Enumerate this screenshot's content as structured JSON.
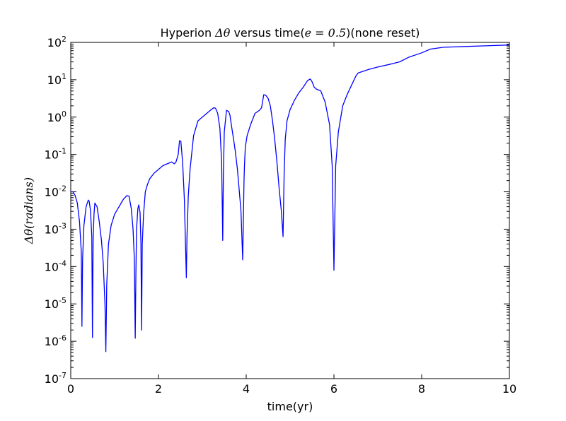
{
  "chart_data": {
    "type": "line",
    "title_parts": [
      "Hyperion ",
      "Δθ",
      " versus time(",
      "e = 0.5",
      ")(none reset)"
    ],
    "xlabel": "time(yr)",
    "ylabel": "Δθ(radians)",
    "ylabel_parts": [
      "Δθ(",
      "radians",
      ")"
    ],
    "xlim": [
      0,
      10
    ],
    "ylim_log10": [
      -7,
      2
    ],
    "y_scale": "log",
    "grid": false,
    "x_ticks": [
      0,
      2,
      4,
      6,
      8,
      10
    ],
    "x_tick_labels": [
      "0",
      "2",
      "4",
      "6",
      "8",
      "10"
    ],
    "y_ticks_log10": [
      -7,
      -6,
      -5,
      -4,
      -3,
      -2,
      -1,
      0,
      1,
      2
    ],
    "y_tick_base": "10",
    "y_tick_exponents": [
      "-7",
      "-6",
      "-5",
      "-4",
      "-3",
      "-2",
      "-1",
      "0",
      "1",
      "2"
    ],
    "line_color": "#0000ff",
    "series": [
      {
        "x": [
          0.0,
          0.05,
          0.1,
          0.15,
          0.2,
          0.24,
          0.255,
          0.27,
          0.3,
          0.35,
          0.4,
          0.42,
          0.45,
          0.48,
          0.495,
          0.51,
          0.53,
          0.55,
          0.6,
          0.65,
          0.7,
          0.74,
          0.78,
          0.8,
          0.82,
          0.86,
          0.92,
          1.0,
          1.1,
          1.2,
          1.28,
          1.33,
          1.38,
          1.42,
          1.45,
          1.47,
          1.485,
          1.5,
          1.53,
          1.55,
          1.58,
          1.6,
          1.615,
          1.63,
          1.66,
          1.7,
          1.75,
          1.8,
          1.9,
          2.0,
          2.1,
          2.2,
          2.3,
          2.36,
          2.4,
          2.45,
          2.48,
          2.51,
          2.55,
          2.59,
          2.62,
          2.635,
          2.65,
          2.68,
          2.72,
          2.8,
          2.9,
          3.0,
          3.1,
          3.2,
          3.26,
          3.3,
          3.35,
          3.4,
          3.44,
          3.465,
          3.48,
          3.5,
          3.55,
          3.6,
          3.63,
          3.66,
          3.7,
          3.75,
          3.8,
          3.88,
          3.92,
          3.95,
          3.96,
          3.98,
          4.02,
          4.1,
          4.2,
          4.3,
          4.35,
          4.4,
          4.45,
          4.5,
          4.55,
          4.6,
          4.65,
          4.7,
          4.75,
          4.8,
          4.84,
          4.865,
          4.89,
          4.93,
          5.0,
          5.1,
          5.2,
          5.3,
          5.4,
          5.46,
          5.5,
          5.55,
          5.6,
          5.7,
          5.8,
          5.9,
          5.96,
          6.0,
          6.04,
          6.1,
          6.2,
          6.3,
          6.4,
          6.5,
          6.55,
          6.8,
          7.0,
          7.3,
          7.5,
          7.7,
          8.0,
          8.2,
          8.5,
          9.0,
          9.5,
          10.0
        ],
        "y_log10": [
          -2.0,
          -2.0,
          -2.1,
          -2.3,
          -2.8,
          -3.6,
          -5.6,
          -3.8,
          -2.9,
          -2.4,
          -2.22,
          -2.25,
          -2.5,
          -3.2,
          -5.9,
          -3.3,
          -2.6,
          -2.3,
          -2.4,
          -2.8,
          -3.3,
          -3.9,
          -5.0,
          -6.28,
          -4.5,
          -3.4,
          -2.9,
          -2.6,
          -2.4,
          -2.2,
          -2.1,
          -2.12,
          -2.45,
          -3.0,
          -3.8,
          -5.92,
          -4.2,
          -3.0,
          -2.45,
          -2.35,
          -2.55,
          -3.4,
          -5.7,
          -3.4,
          -2.6,
          -2.0,
          -1.8,
          -1.65,
          -1.5,
          -1.4,
          -1.3,
          -1.25,
          -1.2,
          -1.25,
          -1.2,
          -1.0,
          -0.63,
          -0.65,
          -1.2,
          -2.2,
          -3.6,
          -4.3,
          -3.2,
          -2.1,
          -1.4,
          -0.5,
          -0.1,
          0.0,
          0.1,
          0.2,
          0.25,
          0.24,
          0.1,
          -0.3,
          -1.2,
          -3.3,
          -1.5,
          -0.4,
          0.18,
          0.15,
          0.05,
          -0.2,
          -0.5,
          -0.9,
          -1.4,
          -2.5,
          -3.82,
          -1.7,
          -1.3,
          -0.8,
          -0.5,
          -0.2,
          0.1,
          0.18,
          0.25,
          0.6,
          0.58,
          0.5,
          0.3,
          -0.1,
          -0.6,
          -1.2,
          -1.9,
          -2.5,
          -3.2,
          -1.5,
          -0.6,
          -0.1,
          0.2,
          0.45,
          0.65,
          0.8,
          0.98,
          1.02,
          0.95,
          0.8,
          0.75,
          0.7,
          0.4,
          -0.2,
          -1.3,
          -4.1,
          -1.3,
          -0.4,
          0.3,
          0.6,
          0.85,
          1.1,
          1.18,
          1.28,
          1.34,
          1.42,
          1.48,
          1.6,
          1.72,
          1.82,
          1.87,
          1.89,
          1.91,
          1.93
        ]
      }
    ]
  }
}
